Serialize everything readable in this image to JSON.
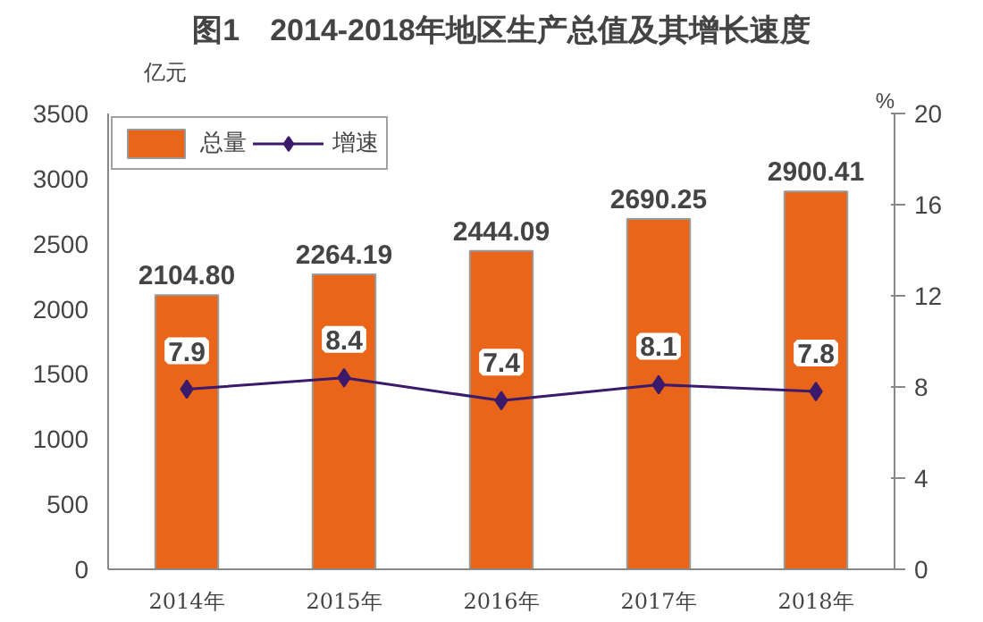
{
  "chart_data": {
    "type": "bar",
    "title": "图1　2014-2018年地区生产总值及其增长速度",
    "categories": [
      "2014年",
      "2015年",
      "2016年",
      "2017年",
      "2018年"
    ],
    "ylabel": "亿元",
    "y2label": "%",
    "ylim": [
      0,
      3500
    ],
    "yticks": [
      0,
      500,
      1000,
      1500,
      2000,
      2500,
      3000,
      3500
    ],
    "y2lim": [
      0,
      20
    ],
    "y2ticks": [
      0,
      4,
      8,
      12,
      16,
      20
    ],
    "series": [
      {
        "name": "总量",
        "color": "#e8651a",
        "values": [
          2104.8,
          2264.19,
          2444.09,
          2690.25,
          2900.41
        ],
        "value_labels": [
          "2104.80",
          "2264.19",
          "2444.09",
          "2690.25",
          "2900.41"
        ]
      },
      {
        "name": "增速",
        "type": "line",
        "axis": "y2",
        "color": "#3b1a6b",
        "values": [
          7.9,
          8.4,
          7.4,
          8.1,
          7.8
        ]
      }
    ],
    "data_labels": true,
    "legend": "top left",
    "grid": false,
    "marker": "diamond",
    "line_style": "solid"
  }
}
